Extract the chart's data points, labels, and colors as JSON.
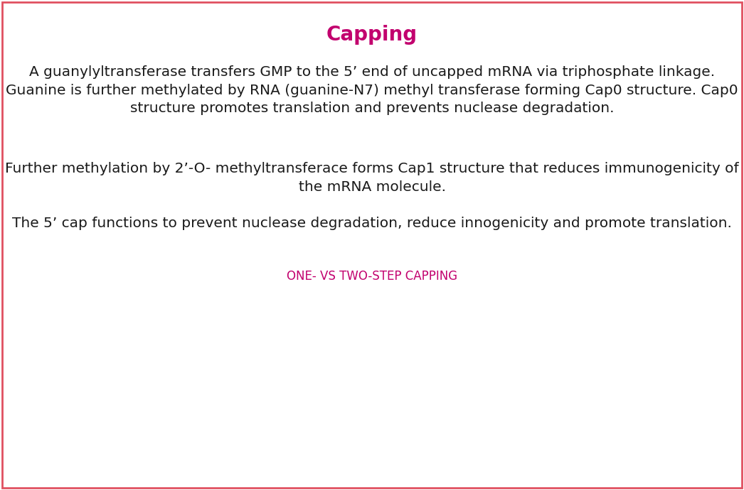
{
  "title": "Capping",
  "title_color": "#c2006e",
  "title_fontsize": 20,
  "paragraph1": "A guanylyltransferase transfers GMP to the 5’ end of uncapped mRNA via triphosphate linkage.\nGuanine is further methylated by RNA (guanine-N7) methyl transferase forming Cap0 structure. Cap0\nstructure promotes translation and prevents nuclease degradation.",
  "paragraph2": "Further methylation by 2’-O- methyltransferace forms Cap1 structure that reduces immunogenicity of\nthe mRNA molecule.",
  "paragraph3": "The 5’ cap functions to prevent nuclease degradation, reduce innogenicity and promote translation.",
  "subheading": "ONE- VS TWO-STEP CAPPING",
  "subheading_color": "#c2006e",
  "text_color": "#1a1a1a",
  "background_color": "#ffffff",
  "border_color": "#e05060",
  "p_fontsize": 14.5,
  "subheading_fontsize": 12
}
